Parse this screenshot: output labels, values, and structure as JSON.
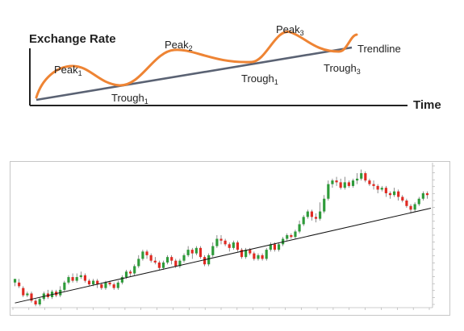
{
  "diagram": {
    "y_axis_label": "Exchange Rate",
    "x_axis_label": "Time",
    "trendline_label": "Trendline",
    "peaks": [
      {
        "name": "Peak",
        "sub": "1"
      },
      {
        "name": "Peak",
        "sub": "2"
      },
      {
        "name": "Peak",
        "sub": "3"
      }
    ],
    "troughs": [
      {
        "name": "Trough",
        "sub": "1"
      },
      {
        "name": "Trough",
        "sub": "1"
      },
      {
        "name": "Trough",
        "sub": "3"
      }
    ],
    "colors": {
      "curve": "#ee8434",
      "trendline": "#5a6273",
      "axes": "#222222"
    }
  },
  "candles": {
    "colors": {
      "up": "#2e9b3a",
      "down": "#e02a22",
      "wick": "#444444",
      "trendline": "#111111"
    },
    "data": [
      [
        1.38,
        1.39,
        1.37,
        1.38
      ],
      [
        1.38,
        1.37,
        1.39,
        1.365
      ],
      [
        1.365,
        1.345,
        1.37,
        1.34
      ],
      [
        1.345,
        1.35,
        1.355,
        1.34
      ],
      [
        1.35,
        1.33,
        1.355,
        1.325
      ],
      [
        1.33,
        1.32,
        1.335,
        1.315
      ],
      [
        1.32,
        1.335,
        1.34,
        1.315
      ],
      [
        1.335,
        1.35,
        1.355,
        1.33
      ],
      [
        1.35,
        1.34,
        1.36,
        1.335
      ],
      [
        1.34,
        1.355,
        1.36,
        1.335
      ],
      [
        1.355,
        1.345,
        1.36,
        1.34
      ],
      [
        1.345,
        1.36,
        1.37,
        1.34
      ],
      [
        1.36,
        1.38,
        1.385,
        1.355
      ],
      [
        1.38,
        1.395,
        1.4,
        1.375
      ],
      [
        1.395,
        1.385,
        1.405,
        1.38
      ],
      [
        1.385,
        1.395,
        1.405,
        1.38
      ],
      [
        1.395,
        1.4,
        1.41,
        1.39
      ],
      [
        1.4,
        1.385,
        1.405,
        1.38
      ],
      [
        1.385,
        1.375,
        1.39,
        1.37
      ],
      [
        1.375,
        1.385,
        1.39,
        1.37
      ],
      [
        1.385,
        1.375,
        1.39,
        1.365
      ],
      [
        1.375,
        1.365,
        1.38,
        1.36
      ],
      [
        1.365,
        1.38,
        1.385,
        1.36
      ],
      [
        1.38,
        1.375,
        1.385,
        1.37
      ],
      [
        1.375,
        1.365,
        1.38,
        1.36
      ],
      [
        1.365,
        1.38,
        1.385,
        1.36
      ],
      [
        1.38,
        1.395,
        1.4,
        1.375
      ],
      [
        1.395,
        1.41,
        1.415,
        1.39
      ],
      [
        1.41,
        1.405,
        1.415,
        1.395
      ],
      [
        1.405,
        1.425,
        1.43,
        1.4
      ],
      [
        1.425,
        1.445,
        1.455,
        1.42
      ],
      [
        1.445,
        1.465,
        1.47,
        1.44
      ],
      [
        1.465,
        1.455,
        1.47,
        1.445
      ],
      [
        1.455,
        1.44,
        1.46,
        1.435
      ],
      [
        1.44,
        1.435,
        1.45,
        1.43
      ],
      [
        1.435,
        1.42,
        1.44,
        1.415
      ],
      [
        1.42,
        1.435,
        1.44,
        1.415
      ],
      [
        1.435,
        1.45,
        1.455,
        1.43
      ],
      [
        1.45,
        1.44,
        1.455,
        1.43
      ],
      [
        1.44,
        1.425,
        1.445,
        1.42
      ],
      [
        1.425,
        1.44,
        1.445,
        1.42
      ],
      [
        1.44,
        1.455,
        1.46,
        1.435
      ],
      [
        1.455,
        1.47,
        1.48,
        1.45
      ],
      [
        1.47,
        1.46,
        1.475,
        1.445
      ],
      [
        1.46,
        1.475,
        1.48,
        1.455
      ],
      [
        1.475,
        1.45,
        1.48,
        1.445
      ],
      [
        1.45,
        1.43,
        1.455,
        1.425
      ],
      [
        1.43,
        1.455,
        1.46,
        1.425
      ],
      [
        1.455,
        1.48,
        1.49,
        1.45
      ],
      [
        1.48,
        1.5,
        1.51,
        1.475
      ],
      [
        1.5,
        1.495,
        1.51,
        1.485
      ],
      [
        1.495,
        1.485,
        1.5,
        1.48
      ],
      [
        1.485,
        1.475,
        1.49,
        1.465
      ],
      [
        1.475,
        1.49,
        1.495,
        1.47
      ],
      [
        1.49,
        1.47,
        1.495,
        1.465
      ],
      [
        1.47,
        1.45,
        1.475,
        1.445
      ],
      [
        1.45,
        1.47,
        1.475,
        1.445
      ],
      [
        1.47,
        1.46,
        1.475,
        1.455
      ],
      [
        1.46,
        1.445,
        1.465,
        1.44
      ],
      [
        1.445,
        1.455,
        1.46,
        1.44
      ],
      [
        1.455,
        1.445,
        1.46,
        1.44
      ],
      [
        1.445,
        1.47,
        1.475,
        1.44
      ],
      [
        1.47,
        1.485,
        1.49,
        1.465
      ],
      [
        1.485,
        1.47,
        1.49,
        1.465
      ],
      [
        1.47,
        1.485,
        1.49,
        1.465
      ],
      [
        1.485,
        1.5,
        1.505,
        1.48
      ],
      [
        1.5,
        1.51,
        1.515,
        1.495
      ],
      [
        1.51,
        1.505,
        1.515,
        1.5
      ],
      [
        1.505,
        1.52,
        1.525,
        1.5
      ],
      [
        1.52,
        1.54,
        1.55,
        1.515
      ],
      [
        1.54,
        1.56,
        1.565,
        1.535
      ],
      [
        1.56,
        1.575,
        1.58,
        1.555
      ],
      [
        1.575,
        1.56,
        1.58,
        1.55
      ],
      [
        1.56,
        1.555,
        1.57,
        1.545
      ],
      [
        1.555,
        1.575,
        1.6,
        1.55
      ],
      [
        1.575,
        1.61,
        1.62,
        1.57
      ],
      [
        1.61,
        1.65,
        1.66,
        1.605
      ],
      [
        1.65,
        1.66,
        1.665,
        1.64
      ],
      [
        1.66,
        1.655,
        1.67,
        1.645
      ],
      [
        1.655,
        1.64,
        1.665,
        1.635
      ],
      [
        1.64,
        1.655,
        1.67,
        1.635
      ],
      [
        1.655,
        1.645,
        1.66,
        1.64
      ],
      [
        1.645,
        1.66,
        1.665,
        1.64
      ],
      [
        1.66,
        1.665,
        1.68,
        1.65
      ],
      [
        1.665,
        1.68,
        1.69,
        1.66
      ],
      [
        1.68,
        1.66,
        1.685,
        1.655
      ],
      [
        1.66,
        1.65,
        1.665,
        1.645
      ],
      [
        1.65,
        1.645,
        1.66,
        1.635
      ],
      [
        1.645,
        1.635,
        1.65,
        1.625
      ],
      [
        1.635,
        1.64,
        1.645,
        1.63
      ],
      [
        1.64,
        1.625,
        1.645,
        1.615
      ],
      [
        1.625,
        1.62,
        1.63,
        1.61
      ],
      [
        1.62,
        1.63,
        1.64,
        1.615
      ],
      [
        1.63,
        1.615,
        1.635,
        1.605
      ],
      [
        1.615,
        1.605,
        1.62,
        1.6
      ],
      [
        1.605,
        1.59,
        1.61,
        1.585
      ],
      [
        1.59,
        1.58,
        1.595,
        1.57
      ],
      [
        1.58,
        1.595,
        1.6,
        1.575
      ],
      [
        1.595,
        1.61,
        1.615,
        1.59
      ],
      [
        1.61,
        1.625,
        1.63,
        1.605
      ],
      [
        1.625,
        1.62,
        1.63,
        1.61
      ]
    ],
    "ylim": [
      1.32,
      1.7
    ],
    "trend_start": 1.324,
    "trend_end": 1.584
  }
}
